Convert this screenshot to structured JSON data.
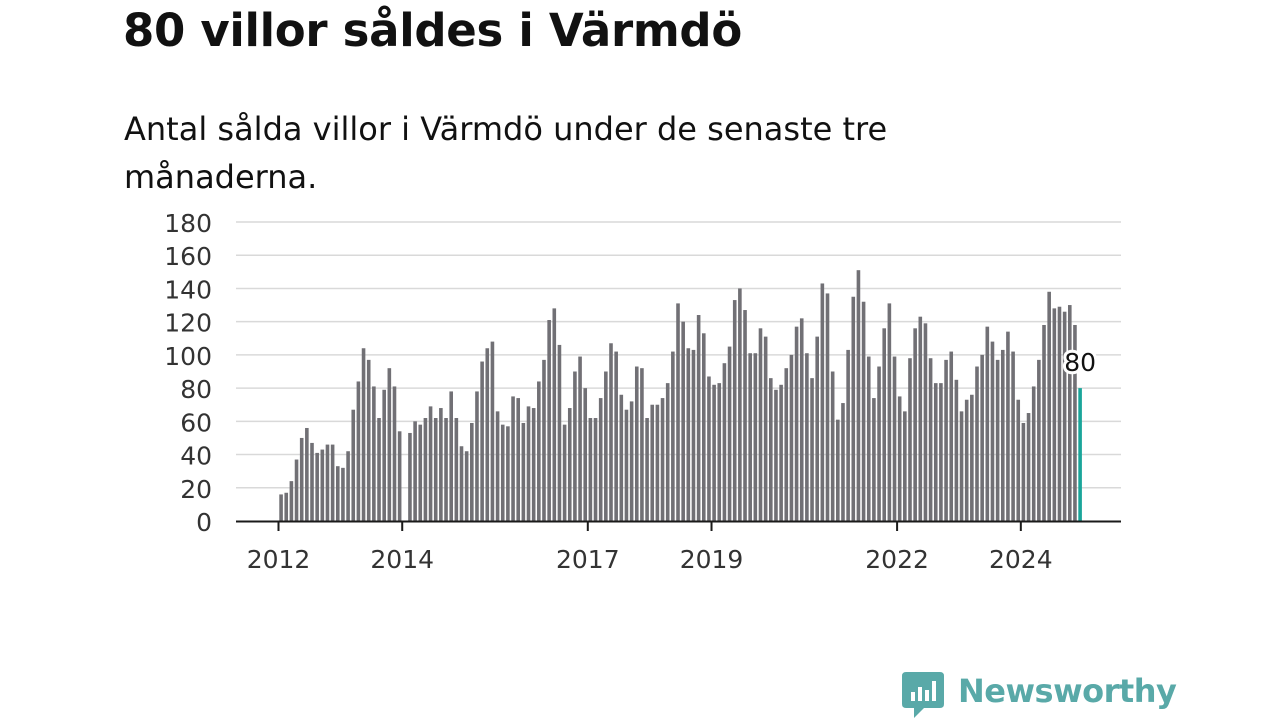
{
  "title": "80 villor såldes i Värmdö",
  "subtitle": "Antal sålda villor i Värmdö under de senaste tre månaderna.",
  "logo_text": "Newsworthy",
  "colors": {
    "bar": "#717075",
    "highlight": "#1aa59a",
    "grid": "#d9d9d9",
    "axis": "#1a1a1a",
    "logo": "#59a9a8"
  },
  "chart_data": {
    "type": "bar",
    "title": "80 villor såldes i Värmdö",
    "subtitle": "Antal sålda villor i Värmdö under de senaste tre månaderna.",
    "ylim": [
      0,
      180
    ],
    "yticks": [
      0,
      20,
      40,
      60,
      80,
      100,
      120,
      140,
      160,
      180
    ],
    "grid": true,
    "xlim": [
      "2011-09",
      "2025-03"
    ],
    "xtick_labels": [
      {
        "label": "2012",
        "date": "2012-01"
      },
      {
        "label": "2014",
        "date": "2014-01"
      },
      {
        "label": "2017",
        "date": "2017-01"
      },
      {
        "label": "2019",
        "date": "2019-01"
      },
      {
        "label": "2022",
        "date": "2022-01"
      },
      {
        "label": "2024",
        "date": "2024-01"
      }
    ],
    "start_month": "2012-01",
    "values": [
      16,
      17,
      24,
      37,
      50,
      56,
      47,
      41,
      43,
      46,
      46,
      33,
      32,
      42,
      67,
      84,
      104,
      97,
      81,
      62,
      79,
      92,
      81,
      54,
      null,
      53,
      60,
      58,
      62,
      69,
      62,
      68,
      62,
      78,
      62,
      45,
      42,
      59,
      78,
      96,
      104,
      108,
      66,
      58,
      57,
      75,
      74,
      59,
      69,
      68,
      84,
      97,
      121,
      128,
      106,
      58,
      68,
      90,
      99,
      80,
      62,
      62,
      74,
      90,
      107,
      102,
      76,
      67,
      72,
      93,
      92,
      62,
      70,
      70,
      74,
      83,
      102,
      131,
      120,
      104,
      103,
      124,
      113,
      87,
      82,
      83,
      95,
      105,
      133,
      140,
      127,
      101,
      101,
      116,
      111,
      86,
      79,
      82,
      92,
      100,
      117,
      122,
      101,
      86,
      111,
      143,
      137,
      90,
      61,
      71,
      103,
      135,
      151,
      132,
      99,
      74,
      93,
      116,
      131,
      99,
      75,
      66,
      98,
      116,
      123,
      119,
      98,
      83,
      83,
      97,
      102,
      85,
      66,
      73,
      76,
      93,
      100,
      117,
      108,
      97,
      103,
      114,
      102,
      73,
      59,
      65,
      81,
      97,
      118,
      138,
      128,
      129,
      126,
      130,
      118,
      80
    ],
    "highlight": {
      "date": "2024-12",
      "value": 80,
      "label": "80"
    }
  }
}
